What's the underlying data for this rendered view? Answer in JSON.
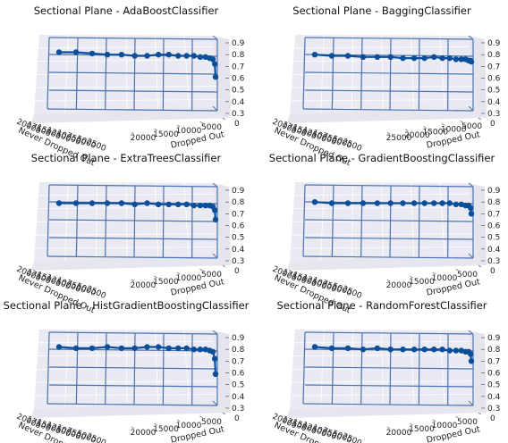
{
  "figure": {
    "background": "#ffffff",
    "pane_color": "#eaeaf2",
    "grid_color": "#ffffff",
    "frame_color": "#4c72b0",
    "series_color": "#0b4e9a"
  },
  "chart_data": [
    {
      "type": "line",
      "title": "Sectional Plane - AdaBoostClassifier",
      "xlabel": "Never Dropped Out",
      "ylabel": "Dropped Out",
      "zlim": [
        0.3,
        0.9
      ],
      "z_ticks": [
        "0.3",
        "0.4",
        "0.5",
        "0.6",
        "0.7",
        "0.8",
        "0.9"
      ],
      "y_ticks": [
        "0",
        "5000",
        "10000",
        "15000",
        "20000"
      ],
      "x_ticks": [
        "20000",
        "17500",
        "15000",
        "12500",
        "10000",
        "7500",
        "5000",
        "2500"
      ],
      "grid": true,
      "series": [
        {
          "values": [
            0.82,
            0.82,
            0.81,
            0.8,
            0.8,
            0.79,
            0.79,
            0.8,
            0.8,
            0.79,
            0.79,
            0.79,
            0.78,
            0.78,
            0.77,
            0.76,
            0.72,
            0.61
          ]
        }
      ]
    },
    {
      "type": "line",
      "title": "Sectional Plane - BaggingClassifier",
      "xlabel": "Never Dropped Out",
      "ylabel": "Dropped Out",
      "zlim": [
        0.3,
        0.9
      ],
      "z_ticks": [
        "0.3",
        "0.4",
        "0.5",
        "0.6",
        "0.7",
        "0.8",
        "0.9"
      ],
      "y_ticks": [
        "0",
        "5000",
        "10000",
        "15000",
        "20000",
        "25000"
      ],
      "x_ticks": [
        "20000",
        "17500",
        "15000",
        "12500",
        "10000",
        "7500",
        "5000",
        "2500"
      ],
      "grid": true,
      "series": [
        {
          "values": [
            0.8,
            0.79,
            0.79,
            0.78,
            0.78,
            0.78,
            0.77,
            0.77,
            0.77,
            0.78,
            0.77,
            0.77,
            0.76,
            0.76,
            0.76,
            0.75,
            0.75,
            0.74
          ]
        }
      ]
    },
    {
      "type": "line",
      "title": "Sectional Plane - ExtraTreesClassifier",
      "xlabel": "Never Dropped Out",
      "ylabel": "Dropped Out",
      "zlim": [
        0.3,
        0.9
      ],
      "z_ticks": [
        "0.3",
        "0.4",
        "0.5",
        "0.6",
        "0.7",
        "0.8",
        "0.9"
      ],
      "y_ticks": [
        "0",
        "5000",
        "10000",
        "15000",
        "20000"
      ],
      "x_ticks": [
        "20000",
        "17500",
        "15000",
        "12500",
        "10000",
        "7500",
        "5000",
        "2500"
      ],
      "grid": true,
      "series": [
        {
          "values": [
            0.79,
            0.79,
            0.79,
            0.79,
            0.79,
            0.78,
            0.79,
            0.78,
            0.78,
            0.78,
            0.78,
            0.77,
            0.77,
            0.77,
            0.77,
            0.76,
            0.73,
            0.65
          ]
        }
      ]
    },
    {
      "type": "line",
      "title": "Sectional Plane - GradientBoostingClassifier",
      "xlabel": "Never Dropped Out",
      "ylabel": "Dropped Out",
      "zlim": [
        0.3,
        0.9
      ],
      "z_ticks": [
        "0.3",
        "0.4",
        "0.5",
        "0.6",
        "0.7",
        "0.8",
        "0.9"
      ],
      "y_ticks": [
        "0",
        "5000",
        "10000",
        "15000",
        "20000"
      ],
      "x_ticks": [
        "20000",
        "17500",
        "15000",
        "12500",
        "10000",
        "7500",
        "5000",
        "2500"
      ],
      "grid": true,
      "series": [
        {
          "values": [
            0.8,
            0.79,
            0.79,
            0.79,
            0.79,
            0.79,
            0.79,
            0.79,
            0.79,
            0.79,
            0.79,
            0.79,
            0.78,
            0.78,
            0.77,
            0.77,
            0.75,
            0.7
          ]
        }
      ]
    },
    {
      "type": "line",
      "title": "Sectional Plane - HistGradientBoostingClassifier",
      "xlabel": "Never Dropped Out",
      "ylabel": "Dropped Out",
      "zlim": [
        0.3,
        0.9
      ],
      "z_ticks": [
        "0.3",
        "0.4",
        "0.5",
        "0.6",
        "0.7",
        "0.8",
        "0.9"
      ],
      "y_ticks": [
        "0",
        "5000",
        "10000",
        "15000",
        "20000"
      ],
      "x_ticks": [
        "20000",
        "17500",
        "15000",
        "12500",
        "10000",
        "7500",
        "5000",
        "2500"
      ],
      "grid": true,
      "series": [
        {
          "values": [
            0.82,
            0.81,
            0.81,
            0.82,
            0.81,
            0.81,
            0.82,
            0.82,
            0.81,
            0.81,
            0.81,
            0.8,
            0.8,
            0.8,
            0.79,
            0.78,
            0.72,
            0.59
          ]
        }
      ]
    },
    {
      "type": "line",
      "title": "Sectional Plane - RandomForestClassifier",
      "xlabel": "Never Dropped Out",
      "ylabel": "Dropped Out",
      "zlim": [
        0.3,
        0.9
      ],
      "z_ticks": [
        "0.3",
        "0.4",
        "0.5",
        "0.6",
        "0.7",
        "0.8",
        "0.9"
      ],
      "y_ticks": [
        "0",
        "5000",
        "10000",
        "15000",
        "20000"
      ],
      "x_ticks": [
        "20000",
        "17500",
        "15000",
        "12500",
        "10000",
        "7500",
        "5000",
        "2500"
      ],
      "grid": true,
      "series": [
        {
          "values": [
            0.82,
            0.81,
            0.81,
            0.8,
            0.81,
            0.8,
            0.8,
            0.8,
            0.8,
            0.8,
            0.8,
            0.79,
            0.79,
            0.79,
            0.78,
            0.78,
            0.76,
            0.7
          ]
        }
      ]
    }
  ]
}
